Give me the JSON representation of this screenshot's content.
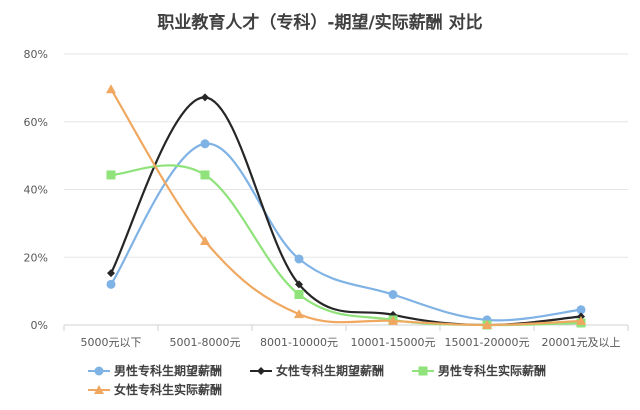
{
  "chart_data": {
    "type": "line",
    "title": "职业教育人才（专科）-期望/实际薪酬 对比",
    "categories": [
      "5000元以下",
      "5001-8000元",
      "8001-10000元",
      "10001-15000元",
      "15001-20000元",
      "20001元及以上"
    ],
    "ylim": [
      0,
      80
    ],
    "yticks": [
      "0%",
      "20%",
      "40%",
      "60%",
      "80%"
    ],
    "ytick_values": [
      0,
      20,
      40,
      60,
      80
    ],
    "grid": true,
    "legend": "bottom",
    "series": [
      {
        "name": "男性专科生期望薪酬",
        "color": "#7fb2e5",
        "marker": "circle",
        "values": [
          12,
          53.5,
          19.5,
          9,
          1.5,
          4.5
        ]
      },
      {
        "name": "女性专科生期望薪酬",
        "color": "#262626",
        "marker": "diamond",
        "values": [
          15.3,
          67.2,
          12,
          3,
          0,
          2.5
        ]
      },
      {
        "name": "男性专科生实际薪酬",
        "color": "#8fe37a",
        "marker": "square",
        "values": [
          44.3,
          44.3,
          9,
          1.5,
          0,
          0.6
        ]
      },
      {
        "name": "女性专科生实际薪酬",
        "color": "#f0a860",
        "marker": "triangle",
        "values": [
          69.6,
          24.8,
          3.2,
          1.2,
          0,
          1.2
        ]
      }
    ]
  }
}
